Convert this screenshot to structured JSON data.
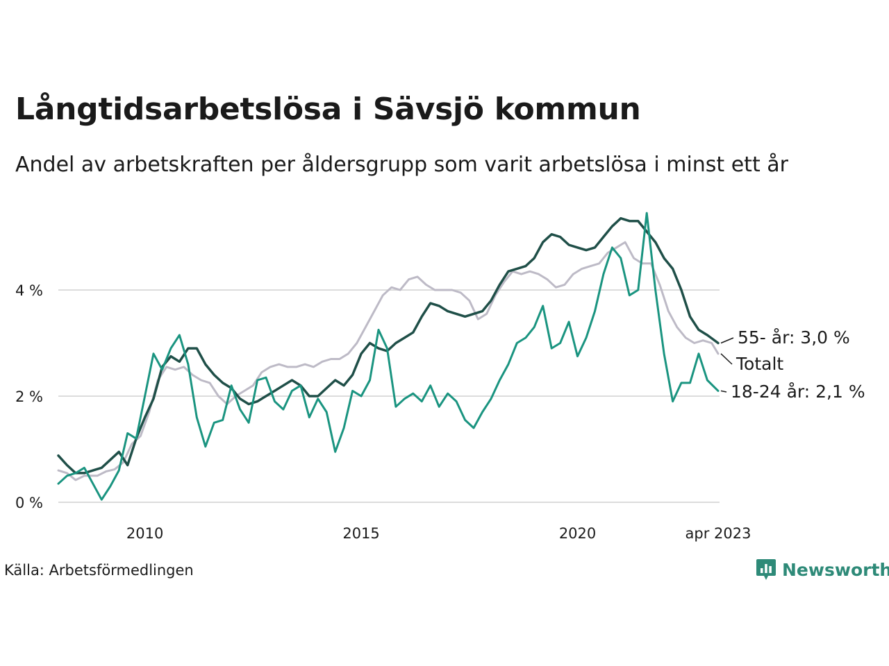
{
  "title": "Långtidsarbetslösa i Sävsjö kommun",
  "subtitle": "Andel av arbetskraften per åldersgrupp som varit arbetslösa i minst ett år",
  "source": "Källa: Arbetsförmedlingen",
  "brand": "Newsworthy",
  "colors": {
    "total": "#bdbac6",
    "age_55": "#1f4f48",
    "age_18_24": "#1a9480",
    "grid": "#dcdcdc",
    "brand": "#2e8a78"
  },
  "chart_data": {
    "type": "line",
    "x_ticks": [
      {
        "x": 2010,
        "label": "2010"
      },
      {
        "x": 2015,
        "label": "2015"
      },
      {
        "x": 2020,
        "label": "2020"
      },
      {
        "x": 2023.25,
        "label": "apr 2023"
      }
    ],
    "y_ticks": [
      {
        "y": 0,
        "label": "0 %"
      },
      {
        "y": 2,
        "label": "2 %"
      },
      {
        "y": 4,
        "label": "4 %"
      }
    ],
    "xlim": [
      2008.0,
      2023.25
    ],
    "ylim": [
      0,
      5.5
    ],
    "grid": true,
    "series": [
      {
        "name": "Totalt",
        "label": "Totalt",
        "points": [
          [
            2008.0,
            0.6
          ],
          [
            2008.2,
            0.55
          ],
          [
            2008.4,
            0.42
          ],
          [
            2008.6,
            0.5
          ],
          [
            2008.9,
            0.5
          ],
          [
            2009.1,
            0.58
          ],
          [
            2009.3,
            0.62
          ],
          [
            2009.5,
            0.75
          ],
          [
            2009.7,
            1.1
          ],
          [
            2009.9,
            1.25
          ],
          [
            2010.1,
            1.7
          ],
          [
            2010.3,
            2.3
          ],
          [
            2010.5,
            2.55
          ],
          [
            2010.7,
            2.5
          ],
          [
            2010.9,
            2.55
          ],
          [
            2011.1,
            2.4
          ],
          [
            2011.3,
            2.3
          ],
          [
            2011.5,
            2.25
          ],
          [
            2011.7,
            2.0
          ],
          [
            2011.9,
            1.85
          ],
          [
            2012.1,
            2.0
          ],
          [
            2012.3,
            2.1
          ],
          [
            2012.5,
            2.2
          ],
          [
            2012.7,
            2.45
          ],
          [
            2012.9,
            2.55
          ],
          [
            2013.1,
            2.6
          ],
          [
            2013.3,
            2.55
          ],
          [
            2013.5,
            2.55
          ],
          [
            2013.7,
            2.6
          ],
          [
            2013.9,
            2.55
          ],
          [
            2014.1,
            2.65
          ],
          [
            2014.3,
            2.7
          ],
          [
            2014.5,
            2.7
          ],
          [
            2014.7,
            2.8
          ],
          [
            2014.9,
            3.0
          ],
          [
            2015.1,
            3.3
          ],
          [
            2015.3,
            3.6
          ],
          [
            2015.5,
            3.9
          ],
          [
            2015.7,
            4.05
          ],
          [
            2015.9,
            4.0
          ],
          [
            2016.1,
            4.2
          ],
          [
            2016.3,
            4.25
          ],
          [
            2016.5,
            4.1
          ],
          [
            2016.7,
            4.0
          ],
          [
            2016.9,
            4.0
          ],
          [
            2017.1,
            4.0
          ],
          [
            2017.3,
            3.95
          ],
          [
            2017.5,
            3.8
          ],
          [
            2017.7,
            3.45
          ],
          [
            2017.9,
            3.55
          ],
          [
            2018.1,
            3.9
          ],
          [
            2018.3,
            4.15
          ],
          [
            2018.5,
            4.35
          ],
          [
            2018.7,
            4.3
          ],
          [
            2018.9,
            4.35
          ],
          [
            2019.1,
            4.3
          ],
          [
            2019.3,
            4.2
          ],
          [
            2019.5,
            4.05
          ],
          [
            2019.7,
            4.1
          ],
          [
            2019.9,
            4.3
          ],
          [
            2020.1,
            4.4
          ],
          [
            2020.3,
            4.45
          ],
          [
            2020.5,
            4.5
          ],
          [
            2020.7,
            4.7
          ],
          [
            2020.9,
            4.8
          ],
          [
            2021.1,
            4.9
          ],
          [
            2021.3,
            4.6
          ],
          [
            2021.5,
            4.5
          ],
          [
            2021.7,
            4.5
          ],
          [
            2021.9,
            4.1
          ],
          [
            2022.1,
            3.6
          ],
          [
            2022.3,
            3.3
          ],
          [
            2022.5,
            3.1
          ],
          [
            2022.7,
            3.0
          ],
          [
            2022.9,
            3.05
          ],
          [
            2023.1,
            3.0
          ],
          [
            2023.25,
            2.8
          ]
        ]
      },
      {
        "name": "55- år",
        "label": "55- år: 3,0 %",
        "points": [
          [
            2008.0,
            0.88
          ],
          [
            2008.2,
            0.7
          ],
          [
            2008.4,
            0.55
          ],
          [
            2008.6,
            0.55
          ],
          [
            2008.8,
            0.6
          ],
          [
            2009.0,
            0.65
          ],
          [
            2009.2,
            0.8
          ],
          [
            2009.4,
            0.95
          ],
          [
            2009.6,
            0.7
          ],
          [
            2009.8,
            1.2
          ],
          [
            2010.0,
            1.6
          ],
          [
            2010.2,
            1.95
          ],
          [
            2010.4,
            2.55
          ],
          [
            2010.6,
            2.75
          ],
          [
            2010.8,
            2.65
          ],
          [
            2011.0,
            2.9
          ],
          [
            2011.2,
            2.9
          ],
          [
            2011.4,
            2.6
          ],
          [
            2011.6,
            2.4
          ],
          [
            2011.8,
            2.25
          ],
          [
            2012.0,
            2.15
          ],
          [
            2012.2,
            1.95
          ],
          [
            2012.4,
            1.85
          ],
          [
            2012.6,
            1.9
          ],
          [
            2012.8,
            2.0
          ],
          [
            2013.0,
            2.1
          ],
          [
            2013.2,
            2.2
          ],
          [
            2013.4,
            2.3
          ],
          [
            2013.6,
            2.2
          ],
          [
            2013.8,
            2.0
          ],
          [
            2014.0,
            2.0
          ],
          [
            2014.2,
            2.15
          ],
          [
            2014.4,
            2.3
          ],
          [
            2014.6,
            2.2
          ],
          [
            2014.8,
            2.4
          ],
          [
            2015.0,
            2.8
          ],
          [
            2015.2,
            3.0
          ],
          [
            2015.4,
            2.9
          ],
          [
            2015.6,
            2.85
          ],
          [
            2015.8,
            3.0
          ],
          [
            2016.0,
            3.1
          ],
          [
            2016.2,
            3.2
          ],
          [
            2016.4,
            3.5
          ],
          [
            2016.6,
            3.75
          ],
          [
            2016.8,
            3.7
          ],
          [
            2017.0,
            3.6
          ],
          [
            2017.2,
            3.55
          ],
          [
            2017.4,
            3.5
          ],
          [
            2017.6,
            3.55
          ],
          [
            2017.8,
            3.6
          ],
          [
            2018.0,
            3.8
          ],
          [
            2018.2,
            4.1
          ],
          [
            2018.4,
            4.35
          ],
          [
            2018.6,
            4.4
          ],
          [
            2018.8,
            4.45
          ],
          [
            2019.0,
            4.6
          ],
          [
            2019.2,
            4.9
          ],
          [
            2019.4,
            5.05
          ],
          [
            2019.6,
            5.0
          ],
          [
            2019.8,
            4.85
          ],
          [
            2020.0,
            4.8
          ],
          [
            2020.2,
            4.75
          ],
          [
            2020.4,
            4.8
          ],
          [
            2020.6,
            5.0
          ],
          [
            2020.8,
            5.2
          ],
          [
            2021.0,
            5.35
          ],
          [
            2021.2,
            5.3
          ],
          [
            2021.4,
            5.3
          ],
          [
            2021.6,
            5.1
          ],
          [
            2021.8,
            4.9
          ],
          [
            2022.0,
            4.6
          ],
          [
            2022.2,
            4.4
          ],
          [
            2022.4,
            4.0
          ],
          [
            2022.6,
            3.5
          ],
          [
            2022.8,
            3.25
          ],
          [
            2023.0,
            3.15
          ],
          [
            2023.25,
            3.0
          ]
        ]
      },
      {
        "name": "18-24 år",
        "label": "18-24 år: 2,1 %",
        "points": [
          [
            2008.0,
            0.35
          ],
          [
            2008.2,
            0.5
          ],
          [
            2008.4,
            0.55
          ],
          [
            2008.6,
            0.65
          ],
          [
            2008.8,
            0.35
          ],
          [
            2009.0,
            0.05
          ],
          [
            2009.2,
            0.3
          ],
          [
            2009.4,
            0.6
          ],
          [
            2009.6,
            1.3
          ],
          [
            2009.8,
            1.2
          ],
          [
            2010.0,
            2.0
          ],
          [
            2010.2,
            2.8
          ],
          [
            2010.4,
            2.5
          ],
          [
            2010.6,
            2.9
          ],
          [
            2010.8,
            3.15
          ],
          [
            2011.0,
            2.6
          ],
          [
            2011.2,
            1.6
          ],
          [
            2011.4,
            1.05
          ],
          [
            2011.6,
            1.5
          ],
          [
            2011.8,
            1.55
          ],
          [
            2012.0,
            2.2
          ],
          [
            2012.2,
            1.75
          ],
          [
            2012.4,
            1.5
          ],
          [
            2012.6,
            2.3
          ],
          [
            2012.8,
            2.35
          ],
          [
            2013.0,
            1.9
          ],
          [
            2013.2,
            1.75
          ],
          [
            2013.4,
            2.1
          ],
          [
            2013.6,
            2.2
          ],
          [
            2013.8,
            1.6
          ],
          [
            2014.0,
            1.95
          ],
          [
            2014.2,
            1.7
          ],
          [
            2014.4,
            0.95
          ],
          [
            2014.6,
            1.4
          ],
          [
            2014.8,
            2.1
          ],
          [
            2015.0,
            2.0
          ],
          [
            2015.2,
            2.3
          ],
          [
            2015.4,
            3.25
          ],
          [
            2015.6,
            2.9
          ],
          [
            2015.8,
            1.8
          ],
          [
            2016.0,
            1.95
          ],
          [
            2016.2,
            2.05
          ],
          [
            2016.4,
            1.9
          ],
          [
            2016.6,
            2.2
          ],
          [
            2016.8,
            1.8
          ],
          [
            2017.0,
            2.05
          ],
          [
            2017.2,
            1.9
          ],
          [
            2017.4,
            1.55
          ],
          [
            2017.6,
            1.4
          ],
          [
            2017.8,
            1.7
          ],
          [
            2018.0,
            1.95
          ],
          [
            2018.2,
            2.3
          ],
          [
            2018.4,
            2.6
          ],
          [
            2018.6,
            3.0
          ],
          [
            2018.8,
            3.1
          ],
          [
            2019.0,
            3.3
          ],
          [
            2019.2,
            3.7
          ],
          [
            2019.4,
            2.9
          ],
          [
            2019.6,
            3.0
          ],
          [
            2019.8,
            3.4
          ],
          [
            2020.0,
            2.75
          ],
          [
            2020.2,
            3.1
          ],
          [
            2020.4,
            3.6
          ],
          [
            2020.6,
            4.3
          ],
          [
            2020.8,
            4.8
          ],
          [
            2021.0,
            4.6
          ],
          [
            2021.2,
            3.9
          ],
          [
            2021.4,
            4.0
          ],
          [
            2021.6,
            5.45
          ],
          [
            2021.8,
            4.0
          ],
          [
            2022.0,
            2.8
          ],
          [
            2022.2,
            1.9
          ],
          [
            2022.4,
            2.25
          ],
          [
            2022.6,
            2.25
          ],
          [
            2022.8,
            2.8
          ],
          [
            2023.0,
            2.3
          ],
          [
            2023.25,
            2.1
          ]
        ]
      }
    ]
  }
}
